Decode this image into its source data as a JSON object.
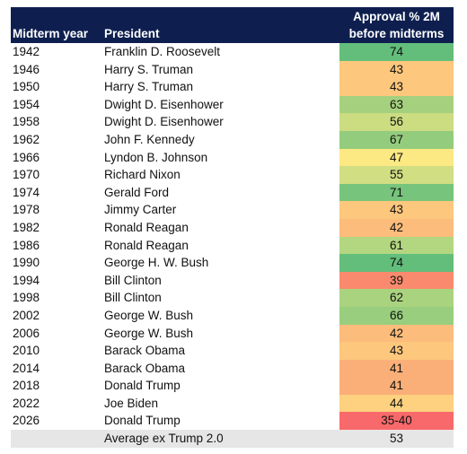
{
  "table": {
    "header": {
      "year": "Midterm year",
      "president": "President",
      "approval": [
        "Approval % 2M",
        "before midterms"
      ]
    },
    "rows": [
      [
        "1942",
        "Franklin D. Roosevelt",
        74
      ],
      [
        "1946",
        "Harry S. Truman",
        43
      ],
      [
        "1950",
        "Harry S. Truman",
        43
      ],
      [
        "1954",
        "Dwight D. Eisenhower",
        63
      ],
      [
        "1958",
        "Dwight D. Eisenhower",
        56
      ],
      [
        "1962",
        "John F. Kennedy",
        67
      ],
      [
        "1966",
        "Lyndon B. Johnson",
        47
      ],
      [
        "1970",
        "Richard Nixon",
        55
      ],
      [
        "1974",
        "Gerald Ford",
        71
      ],
      [
        "1978",
        "Jimmy Carter",
        43
      ],
      [
        "1982",
        "Ronald Reagan",
        42
      ],
      [
        "1986",
        "Ronald Reagan",
        61
      ],
      [
        "1990",
        "George H. W. Bush",
        74
      ],
      [
        "1994",
        "Bill Clinton",
        39
      ],
      [
        "1998",
        "Bill Clinton",
        62
      ],
      [
        "2002",
        "George W. Bush",
        66
      ],
      [
        "2006",
        "George W. Bush",
        42
      ],
      [
        "2010",
        "Barack Obama",
        43
      ],
      [
        "2014",
        "Barack Obama",
        41
      ],
      [
        "2018",
        "Donald Trump",
        41
      ],
      [
        "2022",
        "Joe Biden",
        44
      ],
      [
        "2026",
        "Donald Trump",
        "35-40"
      ]
    ],
    "colors": [
      "#63be7b",
      "#fdc77d",
      "#fdc77d",
      "#a5d17e",
      "#cbdc81",
      "#94cc7d",
      "#fde983",
      "#d1de82",
      "#77c47c",
      "#fdc77d",
      "#fcbc7b",
      "#b3d680",
      "#63be7b",
      "#f98a6d",
      "#aad37f",
      "#98ce7e",
      "#fcbc7b",
      "#fdc77d",
      "#fbaf78",
      "#fbaf78",
      "#fdd17f",
      "#f8696b"
    ],
    "average": {
      "label": "Average ex Trump 2.0",
      "value": 53
    }
  }
}
